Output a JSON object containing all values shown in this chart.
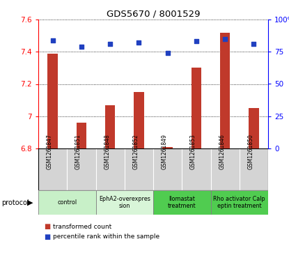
{
  "title": "GDS5670 / 8001529",
  "samples": [
    "GSM1261847",
    "GSM1261851",
    "GSM1261848",
    "GSM1261852",
    "GSM1261849",
    "GSM1261853",
    "GSM1261846",
    "GSM1261850"
  ],
  "red_values": [
    7.39,
    6.96,
    7.07,
    7.15,
    6.81,
    7.3,
    7.52,
    7.05
  ],
  "blue_values": [
    84,
    79,
    81,
    82,
    74,
    83,
    85,
    81
  ],
  "ylim_left": [
    6.8,
    7.6
  ],
  "ylim_right": [
    0,
    100
  ],
  "yticks_left": [
    6.8,
    7.0,
    7.2,
    7.4,
    7.6
  ],
  "ytick_labels_left": [
    "6.8",
    "7",
    "7.2",
    "7.4",
    "7.6"
  ],
  "yticks_right": [
    0,
    25,
    50,
    75,
    100
  ],
  "ytick_labels_right": [
    "0",
    "25",
    "50",
    "75",
    "100%"
  ],
  "bar_color": "#c0392b",
  "dot_color": "#2040c0",
  "groups": [
    {
      "label": "control",
      "indices": [
        0,
        1
      ],
      "color": "#c8f0c8"
    },
    {
      "label": "EphA2-overexpres\nsion",
      "indices": [
        2,
        3
      ],
      "color": "#d8f5d8"
    },
    {
      "label": "Ilomastat\ntreatment",
      "indices": [
        4,
        5
      ],
      "color": "#50cc50"
    },
    {
      "label": "Rho activator Calp\neptin treatment",
      "indices": [
        6,
        7
      ],
      "color": "#50cc50"
    }
  ],
  "bar_width": 0.35,
  "base_value": 6.8
}
